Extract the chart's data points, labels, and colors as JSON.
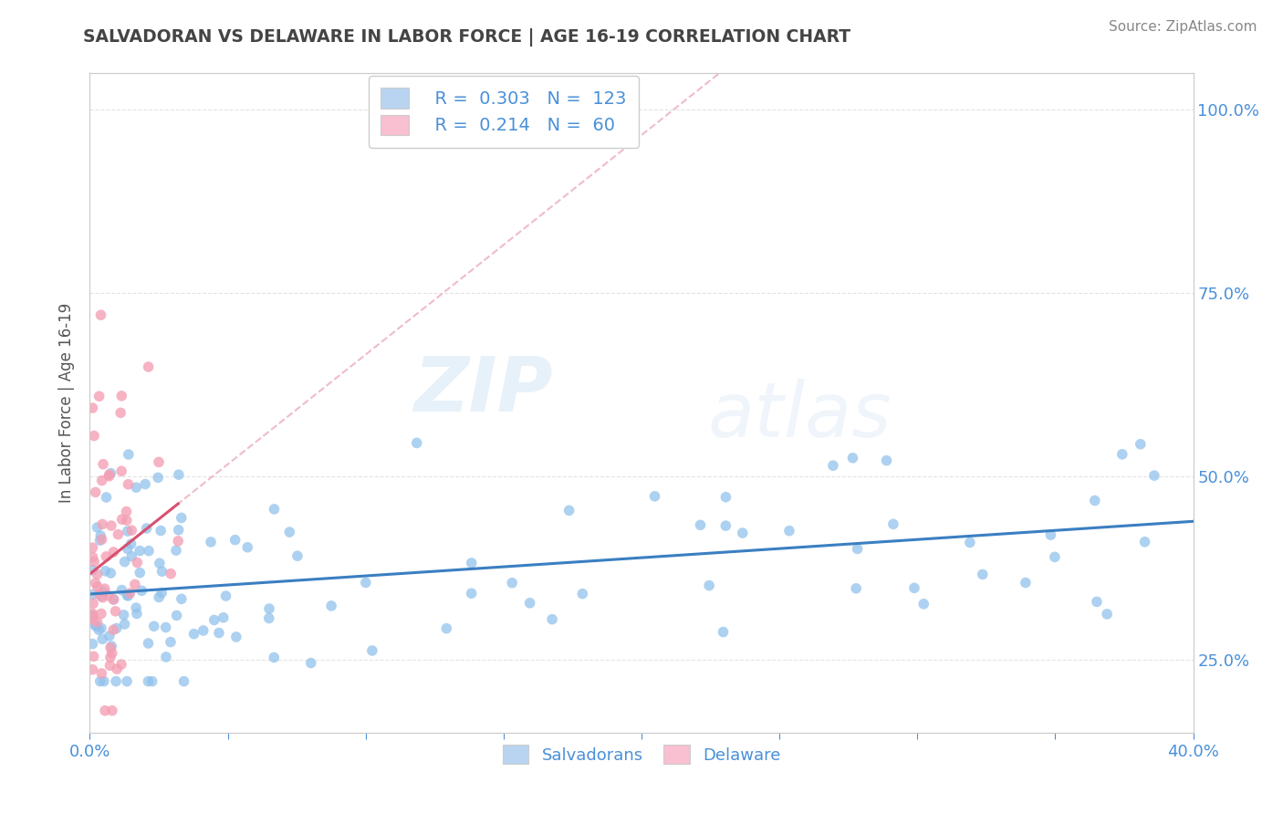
{
  "title": "SALVADORAN VS DELAWARE IN LABOR FORCE | AGE 16-19 CORRELATION CHART",
  "source": "Source: ZipAtlas.com",
  "ylabel": "In Labor Force | Age 16-19",
  "right_yticklabels": [
    "25.0%",
    "50.0%",
    "75.0%",
    "100.0%"
  ],
  "right_yticks": [
    0.25,
    0.5,
    0.75,
    1.0
  ],
  "xmin": 0.0,
  "xmax": 0.4,
  "ymin": 0.15,
  "ymax": 1.05,
  "blue_color": "#92C2EC",
  "pink_color": "#F4A0B5",
  "blue_line_color": "#3A7FC1",
  "pink_line_color": "#D95070",
  "pink_dash_color": "#E8A0B0",
  "legend_box_blue": "#B8D4F0",
  "legend_box_pink": "#F8C0D0",
  "R_blue": 0.303,
  "N_blue": 123,
  "R_pink": 0.214,
  "N_pink": 60,
  "watermark_zip": "ZIP",
  "watermark_atlas": "atlas",
  "title_color": "#444444",
  "axis_color": "#4A90D9",
  "grid_color": "#DDDDDD"
}
